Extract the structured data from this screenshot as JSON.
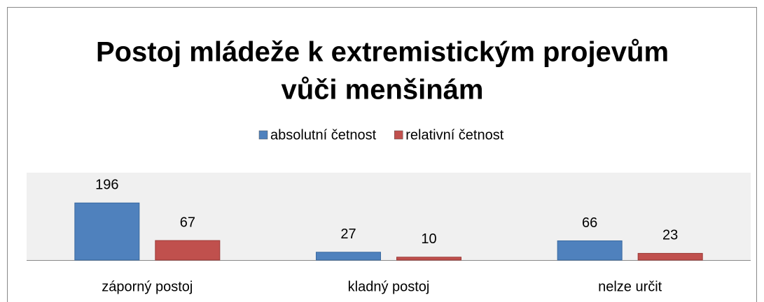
{
  "chart_data": {
    "type": "bar",
    "title_lines": [
      "Postoj mládeže k extremistickým projevům",
      "vůči menšinám"
    ],
    "categories": [
      "záporný postoj",
      "kladný postoj",
      "nelze určit"
    ],
    "series": [
      {
        "name": "absolutní četnost",
        "color": "#4f81bd",
        "values": [
          196,
          27,
          66
        ]
      },
      {
        "name": "relativní četnost",
        "color": "#c0504d",
        "values": [
          67,
          10,
          23
        ]
      }
    ],
    "legend": "top"
  }
}
